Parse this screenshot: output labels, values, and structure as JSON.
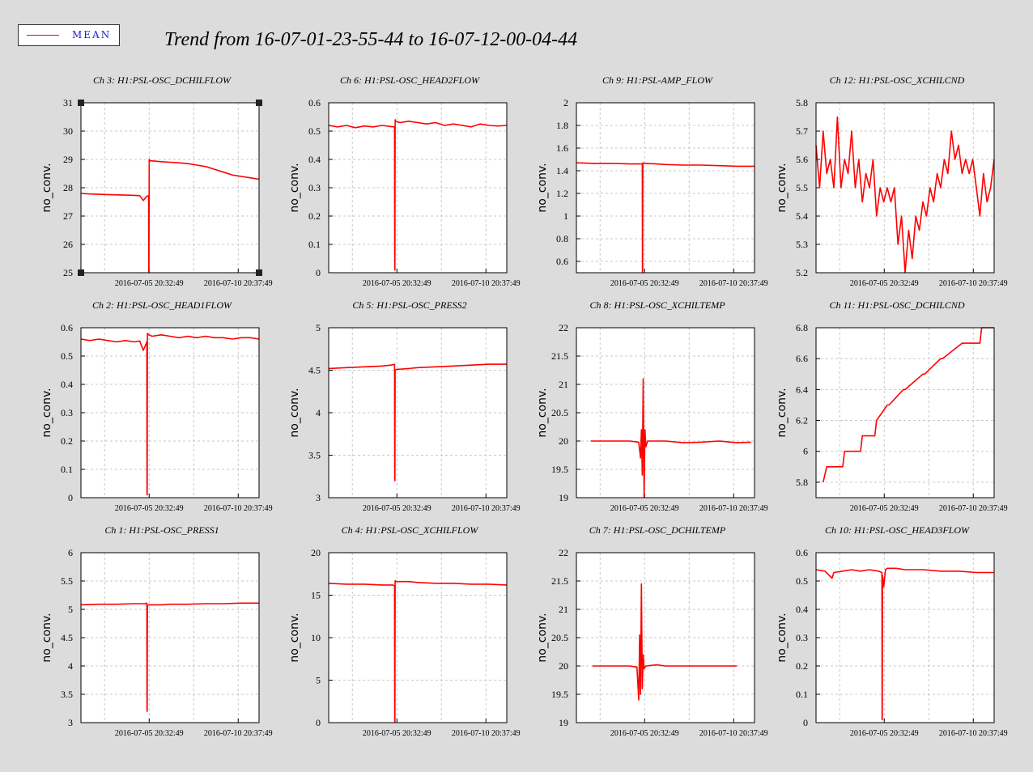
{
  "title": "Trend from 16-07-01-23-55-44 to 16-07-12-00-04-44",
  "legend": {
    "label": "MEAN",
    "color": "#ff0000"
  },
  "x_tick_labels": [
    "2016-07-05 20:32:49",
    "2016-07-10 20:37:49"
  ],
  "chart_data": [
    {
      "type": "line",
      "title": "Ch 3: H1:PSL-OSC_DCHILFLOW",
      "ylabel": "no_conv.",
      "ylim": [
        25,
        31
      ],
      "yticks": [
        25,
        26,
        27,
        28,
        29,
        30,
        31
      ],
      "xticks": [
        "2016-07-05 20:32:49",
        "2016-07-10 20:37:49"
      ],
      "series": [
        {
          "x": [
            0,
            0.05,
            0.1,
            0.15,
            0.2,
            0.25,
            0.3,
            0.33,
            0.35,
            0.37,
            0.38,
            0.381,
            0.382,
            0.383,
            0.384,
            0.385,
            0.4,
            0.45,
            0.5,
            0.55,
            0.6,
            0.65,
            0.7,
            0.75,
            0.8,
            0.85,
            0.9,
            0.95,
            1.0
          ],
          "y": [
            27.8,
            27.78,
            27.77,
            27.76,
            27.75,
            27.74,
            27.73,
            27.72,
            27.55,
            27.7,
            27.72,
            25.0,
            25.0,
            29.0,
            29.0,
            28.95,
            28.95,
            28.92,
            28.9,
            28.88,
            28.85,
            28.8,
            28.75,
            28.65,
            28.55,
            28.45,
            28.4,
            28.35,
            28.3
          ]
        }
      ],
      "selected": true
    },
    {
      "type": "line",
      "title": "Ch 6: H1:PSL-OSC_HEAD2FLOW",
      "ylabel": "no_conv.",
      "ylim": [
        0,
        0.6
      ],
      "yticks": [
        0,
        0.1,
        0.2,
        0.3,
        0.4,
        0.5,
        0.6
      ],
      "xticks": [
        "2016-07-05 20:32:49",
        "2016-07-10 20:37:49"
      ],
      "series": [
        {
          "x": [
            0,
            0.05,
            0.1,
            0.15,
            0.2,
            0.25,
            0.3,
            0.35,
            0.37,
            0.371,
            0.372,
            0.373,
            0.374,
            0.375,
            0.4,
            0.45,
            0.5,
            0.55,
            0.6,
            0.65,
            0.7,
            0.75,
            0.8,
            0.85,
            0.9,
            0.95,
            1.0
          ],
          "y": [
            0.52,
            0.515,
            0.52,
            0.512,
            0.518,
            0.515,
            0.52,
            0.516,
            0.515,
            0.01,
            0.01,
            0.54,
            0.54,
            0.535,
            0.53,
            0.535,
            0.53,
            0.525,
            0.53,
            0.52,
            0.525,
            0.52,
            0.515,
            0.525,
            0.52,
            0.518,
            0.52
          ]
        }
      ]
    },
    {
      "type": "line",
      "title": "Ch 9: H1:PSL-AMP_FLOW",
      "ylabel": "no_conv.",
      "ylim": [
        0.5,
        2
      ],
      "yticks": [
        0.6,
        0.8,
        1,
        1.2,
        1.4,
        1.6,
        1.8,
        2
      ],
      "xticks": [
        "2016-07-05 20:32:49",
        "2016-07-10 20:37:49"
      ],
      "series": [
        {
          "x": [
            0,
            0.1,
            0.2,
            0.3,
            0.36,
            0.37,
            0.371,
            0.372,
            0.373,
            0.38,
            0.45,
            0.5,
            0.6,
            0.7,
            0.8,
            0.9,
            1.0
          ],
          "y": [
            1.47,
            1.465,
            1.465,
            1.46,
            1.46,
            1.46,
            0.5,
            0.5,
            1.47,
            1.465,
            1.46,
            1.455,
            1.45,
            1.45,
            1.445,
            1.44,
            1.44
          ]
        }
      ]
    },
    {
      "type": "line",
      "title": "Ch 12: H1:PSL-OSC_XCHILCND",
      "ylabel": "no_conv.",
      "ylim": [
        5.2,
        5.8
      ],
      "yticks": [
        5.2,
        5.3,
        5.4,
        5.5,
        5.6,
        5.7,
        5.8
      ],
      "xticks": [
        "2016-07-05 20:32:49",
        "2016-07-10 20:37:49"
      ],
      "series": [
        {
          "x": [
            0,
            0.02,
            0.04,
            0.06,
            0.08,
            0.1,
            0.12,
            0.14,
            0.16,
            0.18,
            0.2,
            0.22,
            0.24,
            0.26,
            0.28,
            0.3,
            0.32,
            0.34,
            0.36,
            0.38,
            0.4,
            0.42,
            0.44,
            0.46,
            0.48,
            0.5,
            0.52,
            0.54,
            0.56,
            0.58,
            0.6,
            0.62,
            0.64,
            0.66,
            0.68,
            0.7,
            0.72,
            0.74,
            0.76,
            0.78,
            0.8,
            0.82,
            0.84,
            0.86,
            0.88,
            0.9,
            0.92,
            0.94,
            0.96,
            0.98,
            1.0
          ],
          "y": [
            5.65,
            5.5,
            5.7,
            5.55,
            5.6,
            5.5,
            5.75,
            5.5,
            5.6,
            5.55,
            5.7,
            5.5,
            5.6,
            5.45,
            5.55,
            5.5,
            5.6,
            5.4,
            5.5,
            5.45,
            5.5,
            5.45,
            5.5,
            5.3,
            5.4,
            5.2,
            5.35,
            5.25,
            5.4,
            5.35,
            5.45,
            5.4,
            5.5,
            5.45,
            5.55,
            5.5,
            5.6,
            5.55,
            5.7,
            5.6,
            5.65,
            5.55,
            5.6,
            5.55,
            5.6,
            5.5,
            5.4,
            5.55,
            5.45,
            5.5,
            5.6
          ]
        }
      ]
    },
    {
      "type": "line",
      "title": "Ch 2: H1:PSL-OSC_HEAD1FLOW",
      "ylabel": "no_conv.",
      "ylim": [
        0,
        0.6
      ],
      "yticks": [
        0,
        0.1,
        0.2,
        0.3,
        0.4,
        0.5,
        0.6
      ],
      "xticks": [
        "2016-07-05 20:32:49",
        "2016-07-10 20:37:49"
      ],
      "series": [
        {
          "x": [
            0,
            0.05,
            0.1,
            0.15,
            0.2,
            0.25,
            0.3,
            0.33,
            0.35,
            0.37,
            0.371,
            0.372,
            0.373,
            0.374,
            0.38,
            0.4,
            0.45,
            0.5,
            0.55,
            0.6,
            0.65,
            0.7,
            0.75,
            0.8,
            0.85,
            0.9,
            0.95,
            1.0
          ],
          "y": [
            0.56,
            0.555,
            0.56,
            0.555,
            0.55,
            0.555,
            0.55,
            0.553,
            0.52,
            0.55,
            0.01,
            0.01,
            0.58,
            0.58,
            0.575,
            0.57,
            0.575,
            0.57,
            0.565,
            0.57,
            0.565,
            0.57,
            0.565,
            0.565,
            0.56,
            0.565,
            0.565,
            0.56
          ]
        }
      ]
    },
    {
      "type": "line",
      "title": "Ch 5: H1:PSL-OSC_PRESS2",
      "ylabel": "no_conv.",
      "ylim": [
        3,
        5
      ],
      "yticks": [
        3,
        3.5,
        4,
        4.5,
        5
      ],
      "xticks": [
        "2016-07-05 20:32:49",
        "2016-07-10 20:37:49"
      ],
      "series": [
        {
          "x": [
            0,
            0.1,
            0.2,
            0.3,
            0.35,
            0.37,
            0.371,
            0.372,
            0.373,
            0.374,
            0.38,
            0.45,
            0.5,
            0.6,
            0.7,
            0.8,
            0.9,
            1.0
          ],
          "y": [
            4.52,
            4.53,
            4.54,
            4.55,
            4.56,
            4.57,
            3.2,
            3.2,
            4.5,
            4.5,
            4.51,
            4.52,
            4.53,
            4.54,
            4.55,
            4.56,
            4.57,
            4.57
          ]
        }
      ]
    },
    {
      "type": "line",
      "title": "Ch 8: H1:PSL-OSC_XCHILTEMP",
      "ylabel": "no_conv.",
      "ylim": [
        19,
        22
      ],
      "yticks": [
        19,
        19.5,
        20,
        20.5,
        21,
        21.5,
        22
      ],
      "xticks": [
        "2016-07-05 20:32:49",
        "2016-07-10 20:37:49"
      ],
      "series": [
        {
          "x": [
            0.08,
            0.2,
            0.3,
            0.35,
            0.36,
            0.365,
            0.37,
            0.375,
            0.38,
            0.385,
            0.39,
            0.4,
            0.5,
            0.6,
            0.7,
            0.8,
            0.9,
            0.98
          ],
          "y": [
            20.0,
            20.0,
            20.0,
            19.98,
            19.7,
            20.2,
            19.4,
            21.1,
            19.0,
            20.2,
            19.9,
            20.0,
            20.0,
            19.97,
            19.98,
            20.0,
            19.97,
            19.98
          ]
        }
      ]
    },
    {
      "type": "line",
      "title": "Ch 11: H1:PSL-OSC_DCHILCND",
      "ylabel": "no_conv.",
      "ylim": [
        5.7,
        6.8
      ],
      "yticks": [
        5.8,
        6,
        6.2,
        6.4,
        6.6,
        6.8
      ],
      "xticks": [
        "2016-07-05 20:32:49",
        "2016-07-10 20:37:49"
      ],
      "series": [
        {
          "x": [
            0.04,
            0.06,
            0.15,
            0.16,
            0.25,
            0.26,
            0.33,
            0.34,
            0.4,
            0.41,
            0.49,
            0.5,
            0.6,
            0.61,
            0.7,
            0.71,
            0.82,
            0.83,
            0.92,
            0.93,
            1.0
          ],
          "y": [
            5.8,
            5.9,
            5.9,
            6.0,
            6.0,
            6.1,
            6.1,
            6.2,
            6.3,
            6.3,
            6.4,
            6.4,
            6.5,
            6.5,
            6.6,
            6.6,
            6.7,
            6.7,
            6.7,
            6.8,
            6.8
          ]
        }
      ]
    },
    {
      "type": "line",
      "title": "Ch 1: H1:PSL-OSC_PRESS1",
      "ylabel": "no_conv.",
      "ylim": [
        3,
        6
      ],
      "yticks": [
        3,
        3.5,
        4,
        4.5,
        5,
        5.5,
        6
      ],
      "xticks": [
        "2016-07-05 20:32:49",
        "2016-07-10 20:37:49"
      ],
      "series": [
        {
          "x": [
            0,
            0.1,
            0.2,
            0.3,
            0.36,
            0.37,
            0.371,
            0.372,
            0.373,
            0.374,
            0.38,
            0.45,
            0.5,
            0.6,
            0.7,
            0.8,
            0.9,
            1.0
          ],
          "y": [
            5.08,
            5.09,
            5.09,
            5.1,
            5.1,
            5.11,
            3.2,
            3.2,
            5.07,
            5.07,
            5.08,
            5.08,
            5.09,
            5.09,
            5.1,
            5.1,
            5.11,
            5.11
          ]
        }
      ]
    },
    {
      "type": "line",
      "title": "Ch 4: H1:PSL-OSC_XCHILFLOW",
      "ylabel": "no_conv.",
      "ylim": [
        0,
        20
      ],
      "yticks": [
        0,
        5,
        10,
        15,
        20
      ],
      "xticks": [
        "2016-07-05 20:32:49",
        "2016-07-10 20:37:49"
      ],
      "series": [
        {
          "x": [
            0,
            0.1,
            0.2,
            0.3,
            0.36,
            0.37,
            0.371,
            0.372,
            0.373,
            0.374,
            0.38,
            0.45,
            0.5,
            0.6,
            0.7,
            0.8,
            0.9,
            1.0
          ],
          "y": [
            16.4,
            16.3,
            16.3,
            16.2,
            16.2,
            16.1,
            0.1,
            0.1,
            16.7,
            16.7,
            16.6,
            16.6,
            16.5,
            16.4,
            16.4,
            16.3,
            16.3,
            16.2
          ]
        }
      ]
    },
    {
      "type": "line",
      "title": "Ch 7: H1:PSL-OSC_DCHILTEMP",
      "ylabel": "no_conv.",
      "ylim": [
        19,
        22
      ],
      "yticks": [
        19,
        19.5,
        20,
        20.5,
        21,
        21.5,
        22
      ],
      "xticks": [
        "2016-07-05 20:32:49",
        "2016-07-10 20:37:49"
      ],
      "series": [
        {
          "x": [
            0.09,
            0.2,
            0.3,
            0.34,
            0.35,
            0.355,
            0.36,
            0.365,
            0.37,
            0.375,
            0.38,
            0.39,
            0.45,
            0.5,
            0.6,
            0.7,
            0.8,
            0.9
          ],
          "y": [
            20.0,
            20.0,
            20.0,
            19.98,
            19.4,
            20.55,
            19.5,
            21.45,
            19.6,
            20.2,
            19.95,
            20.0,
            20.02,
            20.0,
            20.0,
            20.0,
            20.0,
            20.0
          ]
        }
      ]
    },
    {
      "type": "line",
      "title": "Ch 10: H1:PSL-OSC_HEAD3FLOW",
      "ylabel": "no_conv.",
      "ylim": [
        0,
        0.6
      ],
      "yticks": [
        0,
        0.1,
        0.2,
        0.3,
        0.4,
        0.5,
        0.6
      ],
      "xticks": [
        "2016-07-05 20:32:49",
        "2016-07-10 20:37:49"
      ],
      "series": [
        {
          "x": [
            0,
            0.05,
            0.09,
            0.1,
            0.15,
            0.2,
            0.25,
            0.3,
            0.35,
            0.37,
            0.371,
            0.372,
            0.373,
            0.38,
            0.39,
            0.4,
            0.45,
            0.5,
            0.6,
            0.7,
            0.8,
            0.9,
            1.0
          ],
          "y": [
            0.54,
            0.535,
            0.51,
            0.53,
            0.535,
            0.54,
            0.535,
            0.54,
            0.535,
            0.53,
            0.01,
            0.01,
            0.52,
            0.48,
            0.54,
            0.545,
            0.545,
            0.54,
            0.54,
            0.535,
            0.535,
            0.53,
            0.53
          ]
        }
      ]
    }
  ]
}
